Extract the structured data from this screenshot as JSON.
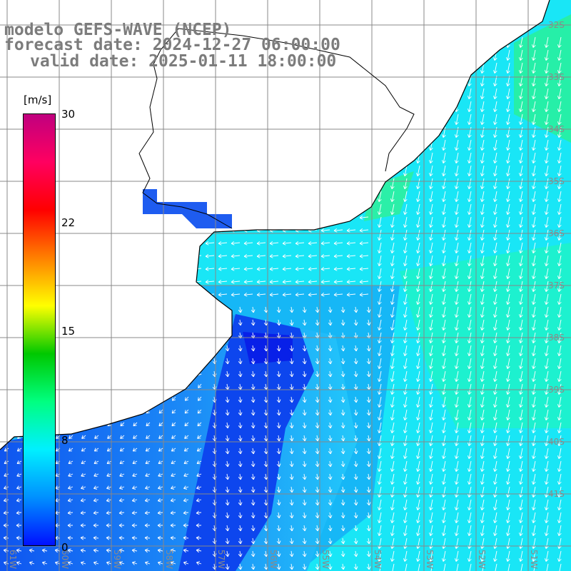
{
  "header": {
    "model": "modelo GEFS-WAVE (NCEP)",
    "forecast": "forecast date: 2024-12-27 06:00:00",
    "valid": "valid date: 2025-01-11 18:00:00"
  },
  "colorbar": {
    "unit": "[m/s]",
    "ticks": [
      "30",
      "22",
      "15",
      "8",
      "0"
    ],
    "stops": [
      "#0010ff",
      "#0090ff",
      "#00f0ff",
      "#00ff80",
      "#00c800",
      "#ffff00",
      "#ff8000",
      "#ff0000",
      "#ff0060",
      "#c0007f"
    ]
  },
  "map": {
    "ocean_color": "#19e6f6",
    "land_color": "#ffffff",
    "grid_color": "#888888",
    "arrow_color": "#ffffff",
    "lat_labels": [
      "32S",
      "33S",
      "34S",
      "35S",
      "36S",
      "37S",
      "38S",
      "39S",
      "40S",
      "41S"
    ],
    "lon_labels": [
      "61W",
      "60W",
      "59W",
      "58W",
      "57W",
      "56W",
      "55W",
      "54W",
      "53W",
      "52W",
      "51W"
    ]
  }
}
